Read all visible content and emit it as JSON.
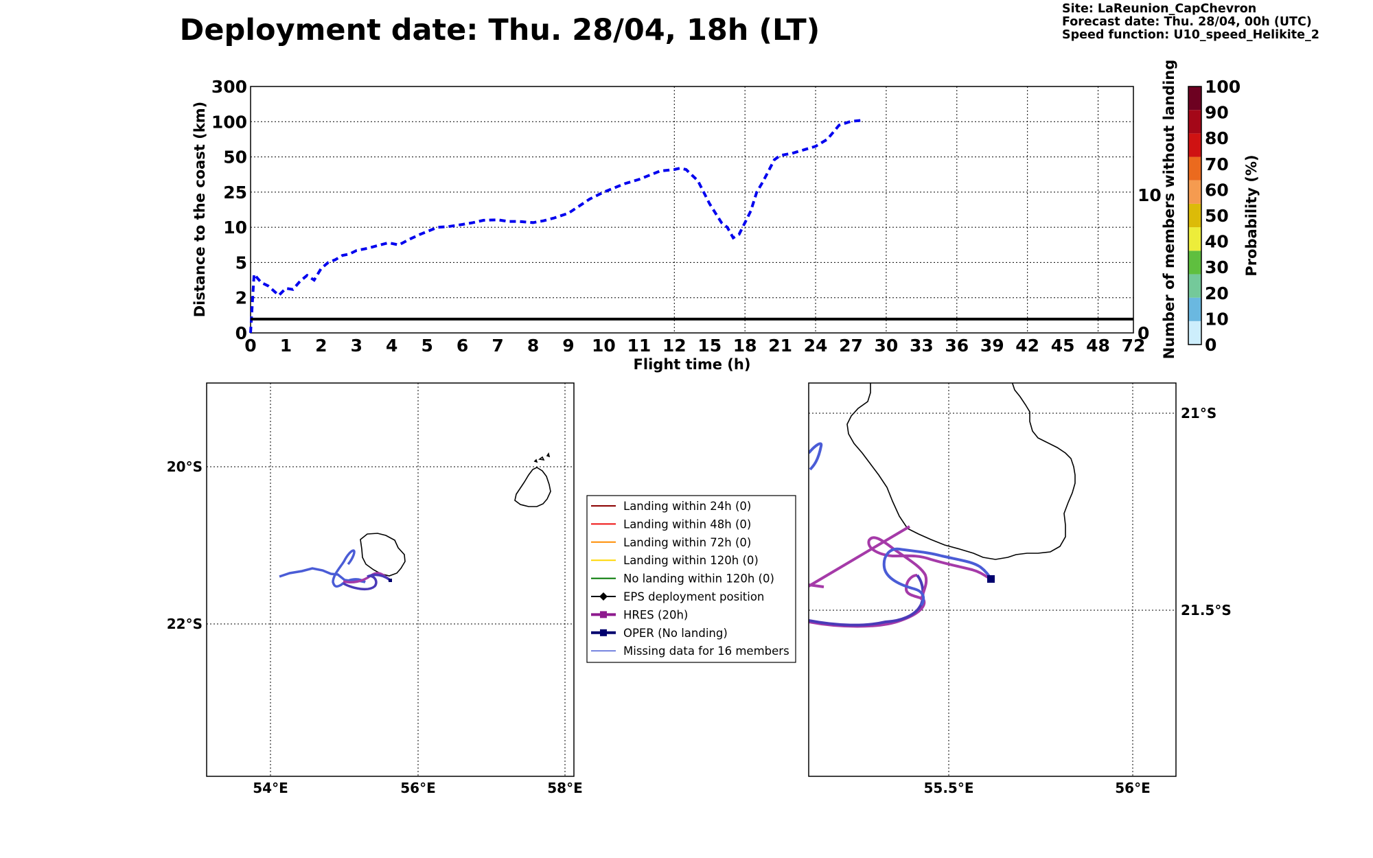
{
  "header": {
    "title": "Deployment date: Thu. 28/04, 18h (LT)",
    "site": "Site: LaReunion_CapChevron",
    "forecast": "Forecast date: Thu. 28/04, 00h (UTC)",
    "speed": "Speed function: U10_speed_Helikite_2"
  },
  "chart_data": {
    "type": "line",
    "xlabel": "Flight time (h)",
    "ylabel": "Distance to the coast (km)",
    "y2label": "Number of members without landing",
    "x_ticks": [
      "0",
      "1",
      "2",
      "3",
      "4",
      "5",
      "6",
      "7",
      "8",
      "9",
      "10",
      "11",
      "12",
      "15",
      "18",
      "21",
      "24",
      "27",
      "30",
      "33",
      "36",
      "39",
      "42",
      "45",
      "48",
      "72"
    ],
    "y_ticks": [
      "0",
      "2",
      "5",
      "10",
      "25",
      "50",
      "100",
      "300"
    ],
    "y2_ticks": [
      "0",
      "10"
    ],
    "colors": {
      "distance": "#0000ee",
      "members": "#000000"
    },
    "series": [
      {
        "name": "",
        "style": "dashed",
        "x": [
          0,
          0.1,
          0.3,
          0.5,
          0.8,
          1,
          1.2,
          1.4,
          1.6,
          1.8,
          2,
          2.2,
          2.4,
          2.6,
          2.8,
          3,
          3.3,
          3.6,
          3.9,
          4.2,
          4.5,
          4.8,
          5,
          5.3,
          5.6,
          6,
          6.3,
          6.6,
          7,
          7.3,
          7.6,
          8,
          8.3,
          8.6,
          9,
          9.3,
          9.6,
          10,
          10.3,
          10.6,
          11,
          11.3,
          11.6,
          12,
          12.5,
          13,
          14,
          15,
          16,
          16.5,
          17,
          17.5,
          18,
          18.5,
          19,
          19.5,
          20,
          20.5,
          21,
          22,
          23,
          24,
          25,
          26,
          27,
          28
        ],
        "y": [
          0,
          4,
          3.3,
          3,
          2.2,
          2.8,
          2.7,
          3.4,
          3.9,
          3.5,
          4.5,
          5,
          5.4,
          6,
          6.2,
          6.7,
          7,
          7.4,
          7.8,
          7.5,
          8.3,
          9,
          9.4,
          10,
          10.3,
          11.2,
          12,
          13,
          13.2,
          12.5,
          12.5,
          12,
          12.8,
          14,
          16,
          19,
          22,
          25,
          28,
          31,
          34,
          37,
          40,
          41,
          42,
          41,
          33,
          20,
          12,
          10,
          8.5,
          9,
          12,
          17,
          25,
          32,
          40,
          48,
          52,
          55,
          60,
          65,
          75,
          95,
          102,
          108
        ]
      },
      {
        "name": "",
        "style": "solid",
        "x": [
          0,
          72
        ],
        "y2": [
          1,
          1
        ]
      }
    ]
  },
  "colorbar": {
    "label": "Probability (%)",
    "ticks": [
      "0",
      "10",
      "20",
      "30",
      "40",
      "50",
      "60",
      "70",
      "80",
      "90",
      "100"
    ],
    "colors": [
      "#cdeefc",
      "#6ab8e0",
      "#74c99a",
      "#5fbf3f",
      "#eded3a",
      "#dcbb08",
      "#f59b50",
      "#eb6a1e",
      "#cf1212",
      "#a40718",
      "#6d0121"
    ]
  },
  "map_left": {
    "x_ticks": [
      "54°E",
      "56°E",
      "58°E"
    ],
    "y_ticks": [
      "20°S",
      "22°S"
    ]
  },
  "map_right": {
    "x_ticks": [
      "55.5°E",
      "56°E"
    ],
    "y_ticks": [
      "21°S",
      "21.5°S"
    ]
  },
  "legend": {
    "items": [
      {
        "label": "Landing within 24h (0)",
        "color": "#8b0000",
        "marker": "none",
        "width": 2
      },
      {
        "label": "Landing within 48h (0)",
        "color": "#ee1111",
        "marker": "none",
        "width": 2
      },
      {
        "label": "Landing within 72h (0)",
        "color": "#ff8c00",
        "marker": "none",
        "width": 2
      },
      {
        "label": "Landing within 120h (0)",
        "color": "#ffd700",
        "marker": "none",
        "width": 2
      },
      {
        "label": "No landing within 120h (0)",
        "color": "#007700",
        "marker": "none",
        "width": 2
      },
      {
        "label": "EPS deployment position",
        "color": "#000000",
        "marker": "diamond",
        "width": 2
      },
      {
        "label": "HRES (20h)",
        "color": "#8e1a8e",
        "marker": "square",
        "width": 4
      },
      {
        "label": "OPER (No landing)",
        "color": "#00006e",
        "marker": "square",
        "width": 4
      },
      {
        "label": "Missing data for 16 members",
        "color": "#4a5cd6",
        "marker": "none",
        "width": 1.5
      }
    ]
  }
}
